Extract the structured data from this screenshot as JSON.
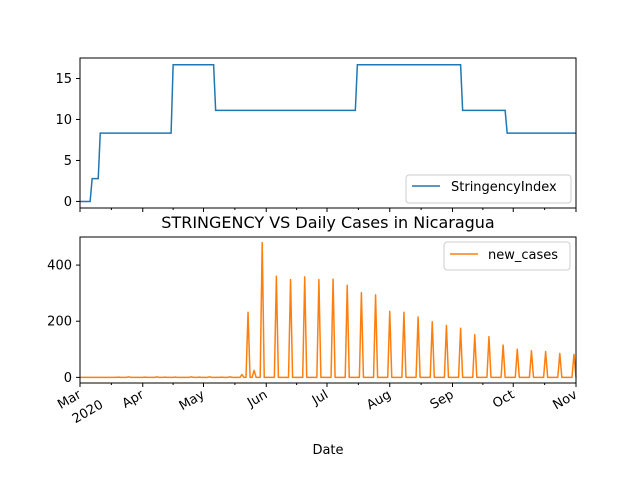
{
  "chart_data": [
    {
      "type": "line",
      "title": "",
      "xlabel": "",
      "ylabel": "",
      "x_range": [
        "2020-03-01",
        "2020-11-01"
      ],
      "ylim": [
        -0.8,
        17.5
      ],
      "yticks": [
        0,
        5,
        10,
        15
      ],
      "legend": "lower-right",
      "grid": false,
      "series": [
        {
          "name": "StringencyIndex",
          "color": "#1f77b4",
          "points": [
            [
              "2020-03-01",
              0
            ],
            [
              "2020-03-06",
              0
            ],
            [
              "2020-03-07",
              2.78
            ],
            [
              "2020-03-10",
              2.78
            ],
            [
              "2020-03-11",
              8.33
            ],
            [
              "2020-04-15",
              8.33
            ],
            [
              "2020-04-16",
              16.67
            ],
            [
              "2020-05-06",
              16.67
            ],
            [
              "2020-05-07",
              11.11
            ],
            [
              "2020-07-15",
              11.11
            ],
            [
              "2020-07-16",
              16.67
            ],
            [
              "2020-09-05",
              16.67
            ],
            [
              "2020-09-06",
              11.11
            ],
            [
              "2020-09-27",
              11.11
            ],
            [
              "2020-09-28",
              8.33
            ],
            [
              "2020-11-01",
              8.33
            ]
          ]
        }
      ]
    },
    {
      "type": "line",
      "title": "STRINGENCY VS Daily Cases in Nicaragua",
      "xlabel": "Date",
      "ylabel": "",
      "x_range": [
        "2020-03-01",
        "2020-11-01"
      ],
      "ylim": [
        -20,
        500
      ],
      "yticks": [
        0,
        200,
        400
      ],
      "legend": "upper-right",
      "grid": false,
      "xticks": [
        {
          "date": "2020-03-01",
          "label": "Mar",
          "sublabel": "2020"
        },
        {
          "date": "2020-04-01",
          "label": "Apr"
        },
        {
          "date": "2020-05-01",
          "label": "May"
        },
        {
          "date": "2020-06-01",
          "label": "Jun"
        },
        {
          "date": "2020-07-01",
          "label": "Jul"
        },
        {
          "date": "2020-08-01",
          "label": "Aug"
        },
        {
          "date": "2020-09-01",
          "label": "Sep"
        },
        {
          "date": "2020-10-01",
          "label": "Oct"
        },
        {
          "date": "2020-11-01",
          "label": "Nov"
        }
      ],
      "series": [
        {
          "name": "new_cases",
          "color": "#ff7f0e",
          "baseline": 0,
          "small_values": [
            [
              "2020-03-20",
              1
            ],
            [
              "2020-03-25",
              2
            ],
            [
              "2020-04-02",
              1
            ],
            [
              "2020-04-08",
              2
            ],
            [
              "2020-04-12",
              1
            ],
            [
              "2020-04-17",
              1
            ],
            [
              "2020-04-25",
              2
            ],
            [
              "2020-04-29",
              1
            ],
            [
              "2020-05-04",
              2
            ],
            [
              "2020-05-10",
              1
            ],
            [
              "2020-05-14",
              2
            ],
            [
              "2020-05-20",
              10
            ]
          ],
          "weekly_spikes": [
            [
              "2020-05-23",
              232
            ],
            [
              "2020-05-26",
              25
            ],
            [
              "2020-05-30",
              480
            ],
            [
              "2020-06-06",
              360
            ],
            [
              "2020-06-13",
              348
            ],
            [
              "2020-06-20",
              358
            ],
            [
              "2020-06-27",
              348
            ],
            [
              "2020-07-04",
              350
            ],
            [
              "2020-07-11",
              328
            ],
            [
              "2020-07-18",
              302
            ],
            [
              "2020-07-25",
              294
            ],
            [
              "2020-08-01",
              235
            ],
            [
              "2020-08-08",
              232
            ],
            [
              "2020-08-15",
              215
            ],
            [
              "2020-08-22",
              198
            ],
            [
              "2020-08-29",
              185
            ],
            [
              "2020-09-05",
              175
            ],
            [
              "2020-09-12",
              152
            ],
            [
              "2020-09-19",
              145
            ],
            [
              "2020-09-26",
              115
            ],
            [
              "2020-10-03",
              100
            ],
            [
              "2020-10-10",
              95
            ],
            [
              "2020-10-17",
              92
            ],
            [
              "2020-10-24",
              85
            ],
            [
              "2020-10-31",
              82
            ]
          ]
        }
      ]
    }
  ]
}
